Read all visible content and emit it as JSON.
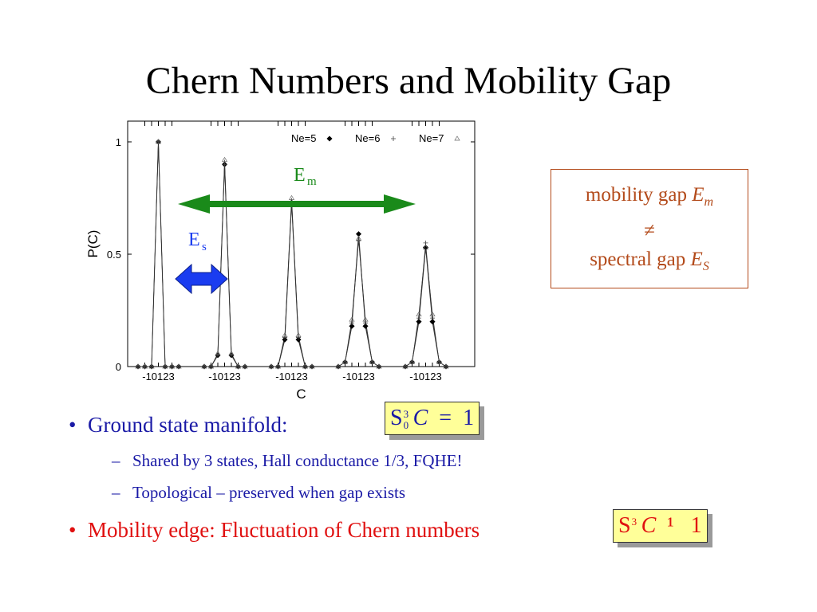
{
  "slide": {
    "title": "Chern Numbers and Mobility Gap"
  },
  "chart_data": {
    "type": "line",
    "ylabel": "P(C)",
    "xlabel": "C",
    "ylim": [
      0,
      1
    ],
    "yticks": [
      "0",
      "0.5",
      "1"
    ],
    "group_tick_labels": [
      "-10123",
      "-10123",
      "-10123",
      "-10123",
      "-10123"
    ],
    "x_groups": [
      "-1",
      "0",
      "1",
      "2",
      "3"
    ],
    "legend": [
      {
        "label": "Ne=5",
        "marker": "diamond"
      },
      {
        "label": "Ne=6",
        "marker": "plus"
      },
      {
        "label": "Ne=7",
        "marker": "triangle"
      }
    ],
    "legend_position": "top-right",
    "peaks": [
      {
        "series": [
          1.0,
          1.0,
          1.0
        ]
      },
      {
        "series": [
          0.9,
          0.9,
          0.92
        ]
      },
      {
        "series": [
          0.73,
          0.73,
          0.75
        ]
      },
      {
        "series": [
          0.59,
          0.56,
          0.57
        ]
      },
      {
        "series": [
          0.53,
          0.55,
          0.53
        ]
      }
    ],
    "annotations": {
      "mobility_arrow_label": "E",
      "mobility_arrow_sub": "m",
      "spectral_arrow_label": "E",
      "spectral_arrow_sub": "s"
    },
    "colors": {
      "mobility_arrow": "#1a8a1a",
      "spectral_arrow": "#1a3cf0"
    }
  },
  "note_box": {
    "line1": "mobility gap",
    "line1_var": "E",
    "line1_sub": "m",
    "line2": "≠",
    "line3": "spectral gap",
    "line3_var": "E",
    "line3_sub": "S",
    "color": "#b34a1a"
  },
  "bullets": [
    {
      "text": "Ground state manifold:",
      "color": "#1a1aa6"
    },
    {
      "text": "Mobility edge: Fluctuation of Chern numbers",
      "color": "#e01010"
    }
  ],
  "sub_bullets": [
    {
      "text": "Shared by 3 states, Hall conductance 1/3, FQHE!"
    },
    {
      "text": "Topological – preserved when gap exists"
    }
  ],
  "equation1": {
    "sigma": "S",
    "upper": "3",
    "lower": "0",
    "var": "C",
    "op": "=",
    "rhs": "1",
    "color": "#1a1aa6"
  },
  "equation2": {
    "sigma": "S",
    "upper": "3",
    "var": "C",
    "op": "¹",
    "rhs": "1",
    "color": "#e01010"
  },
  "bullet_glyph": "•",
  "dash_glyph": "–"
}
